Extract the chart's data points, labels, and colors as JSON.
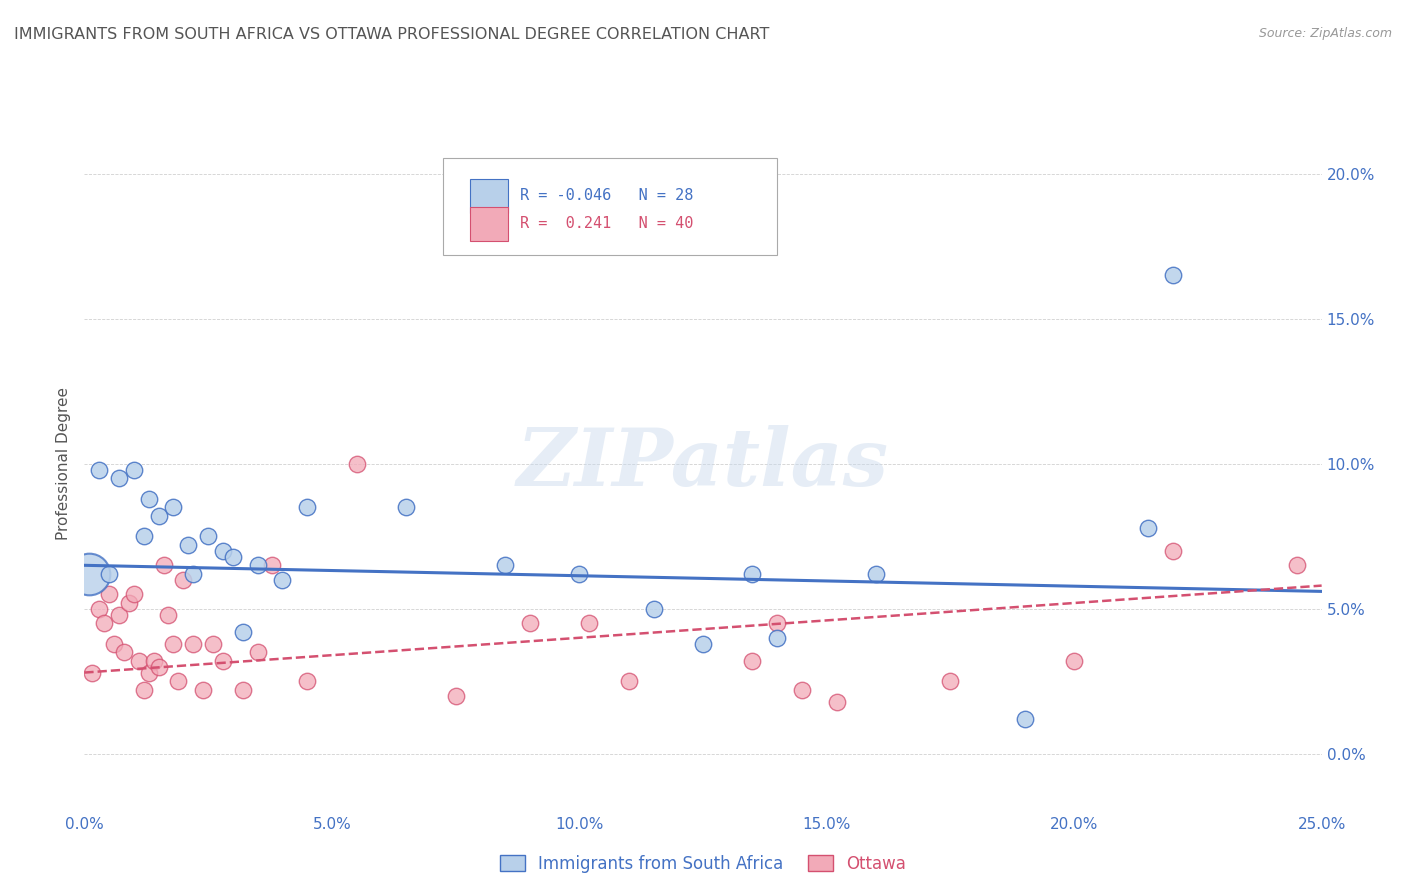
{
  "title": "IMMIGRANTS FROM SOUTH AFRICA VS OTTAWA PROFESSIONAL DEGREE CORRELATION CHART",
  "source": "Source: ZipAtlas.com",
  "ylabel": "Professional Degree",
  "xlim": [
    0,
    25
  ],
  "ylim": [
    -2,
    22
  ],
  "yticks": [
    0,
    5,
    10,
    15,
    20
  ],
  "ytick_labels": [
    "0.0%",
    "5.0%",
    "10.0%",
    "15.0%",
    "20.0%"
  ],
  "xticks": [
    0,
    5,
    10,
    15,
    20,
    25
  ],
  "xtick_labels": [
    "0.0%",
    "5.0%",
    "10.0%",
    "15.0%",
    "20.0%",
    "25.0%"
  ],
  "watermark": "ZIPatlas",
  "series1_name": "Immigrants from South Africa",
  "series2_name": "Ottawa",
  "blue_fill": "#b8d0ea",
  "blue_edge": "#4472c4",
  "pink_fill": "#f2aab8",
  "pink_edge": "#d45070",
  "line1_color": "#4472c4",
  "line2_color": "#d45070",
  "axis_color": "#4472c4",
  "title_color": "#555555",
  "source_color": "#999999",
  "legend_r1": "R = -0.046",
  "legend_n1": "N = 28",
  "legend_r2": "R =  0.241",
  "legend_n2": "N = 40",
  "blue_line_x0": 0,
  "blue_line_y0": 6.5,
  "blue_line_x1": 25,
  "blue_line_y1": 5.6,
  "pink_line_x0": 0,
  "pink_line_y0": 2.8,
  "pink_line_x1": 25,
  "pink_line_y1": 5.8,
  "s1_x": [
    0.3,
    0.7,
    1.0,
    1.3,
    1.5,
    1.8,
    2.1,
    2.5,
    2.8,
    3.0,
    3.5,
    4.0,
    4.5,
    6.5,
    8.5,
    10.0,
    11.5,
    13.5,
    14.0,
    16.0,
    19.0,
    21.5,
    22.0,
    0.5,
    1.2,
    2.2,
    3.2,
    12.5
  ],
  "s1_y": [
    9.8,
    9.5,
    9.8,
    8.8,
    8.2,
    8.5,
    7.2,
    7.5,
    7.0,
    6.8,
    6.5,
    6.0,
    8.5,
    8.5,
    6.5,
    6.2,
    5.0,
    6.2,
    4.0,
    6.2,
    1.2,
    7.8,
    16.5,
    6.2,
    7.5,
    6.2,
    4.2,
    3.8
  ],
  "s2_x": [
    0.15,
    0.3,
    0.4,
    0.5,
    0.6,
    0.7,
    0.8,
    0.9,
    1.0,
    1.1,
    1.2,
    1.3,
    1.4,
    1.5,
    1.6,
    1.7,
    1.8,
    1.9,
    2.0,
    2.2,
    2.4,
    2.6,
    2.8,
    3.2,
    3.5,
    3.8,
    4.5,
    5.5,
    7.5,
    9.0,
    10.2,
    11.0,
    13.5,
    14.0,
    14.5,
    15.2,
    17.5,
    20.0,
    22.0,
    24.5
  ],
  "s2_y": [
    2.8,
    5.0,
    4.5,
    5.5,
    3.8,
    4.8,
    3.5,
    5.2,
    5.5,
    3.2,
    2.2,
    2.8,
    3.2,
    3.0,
    6.5,
    4.8,
    3.8,
    2.5,
    6.0,
    3.8,
    2.2,
    3.8,
    3.2,
    2.2,
    3.5,
    6.5,
    2.5,
    10.0,
    2.0,
    4.5,
    4.5,
    2.5,
    3.2,
    4.5,
    2.2,
    1.8,
    2.5,
    3.2,
    7.0,
    6.5
  ],
  "large_blue_x": 0.1,
  "large_blue_y": 6.2
}
